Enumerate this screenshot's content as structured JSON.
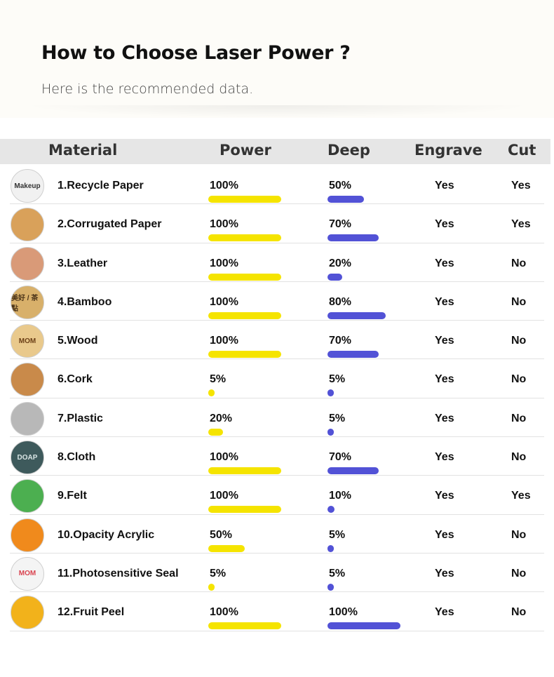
{
  "header": {
    "title": "How to Choose Laser Power ?",
    "subtitle": "Here is the recommended data."
  },
  "table": {
    "columns": {
      "material": "Material",
      "power": "Power",
      "deep": "Deep",
      "engrave": "Engrave",
      "cut": "Cut"
    },
    "rows": [
      {
        "material": "1.Recycle Paper",
        "power": "100%",
        "power_value": 100,
        "deep": "50%",
        "deep_value": 50,
        "engrave": "Yes",
        "cut": "Yes",
        "thumb_color": "#f1f1f1",
        "thumb_text": "Makeup",
        "thumb_text_color": "#333"
      },
      {
        "material": "2.Corrugated Paper",
        "power": "100%",
        "power_value": 100,
        "deep": "70%",
        "deep_value": 70,
        "engrave": "Yes",
        "cut": "Yes",
        "thumb_color": "#d9a15a",
        "thumb_text": "",
        "thumb_text_color": "#222"
      },
      {
        "material": "3.Leather",
        "power": "100%",
        "power_value": 100,
        "deep": "20%",
        "deep_value": 20,
        "engrave": "Yes",
        "cut": "No",
        "thumb_color": "#d99a78",
        "thumb_text": "",
        "thumb_text_color": "#5a2d1a"
      },
      {
        "material": "4.Bamboo",
        "power": "100%",
        "power_value": 100,
        "deep": "80%",
        "deep_value": 80,
        "engrave": "Yes",
        "cut": "No",
        "thumb_color": "#d8b06a",
        "thumb_text": "美好 / 茶點",
        "thumb_text_color": "#4a3318"
      },
      {
        "material": "5.Wood",
        "power": "100%",
        "power_value": 100,
        "deep": "70%",
        "deep_value": 70,
        "engrave": "Yes",
        "cut": "No",
        "thumb_color": "#e9c98c",
        "thumb_text": "MOM",
        "thumb_text_color": "#6b3f16"
      },
      {
        "material": "6.Cork",
        "power": "5%",
        "power_value": 5,
        "deep": "5%",
        "deep_value": 5,
        "engrave": "Yes",
        "cut": "No",
        "thumb_color": "#c98a4a",
        "thumb_text": "",
        "thumb_text_color": "#3a2210"
      },
      {
        "material": "7.Plastic",
        "power": "20%",
        "power_value": 20,
        "deep": "5%",
        "deep_value": 5,
        "engrave": "Yes",
        "cut": "No",
        "thumb_color": "#b8b8b8",
        "thumb_text": "",
        "thumb_text_color": "#b22"
      },
      {
        "material": "8.Cloth",
        "power": "100%",
        "power_value": 100,
        "deep": "70%",
        "deep_value": 70,
        "engrave": "Yes",
        "cut": "No",
        "thumb_color": "#3e5a5c",
        "thumb_text": "DOAP",
        "thumb_text_color": "#d8e4e4"
      },
      {
        "material": "9.Felt",
        "power": "100%",
        "power_value": 100,
        "deep": "10%",
        "deep_value": 10,
        "engrave": "Yes",
        "cut": "Yes",
        "thumb_color": "#4caf50",
        "thumb_text": "",
        "thumb_text_color": "#fff"
      },
      {
        "material": "10.Opacity Acrylic",
        "power": "50%",
        "power_value": 50,
        "deep": "5%",
        "deep_value": 5,
        "engrave": "Yes",
        "cut": "No",
        "thumb_color": "#f08a1c",
        "thumb_text": "",
        "thumb_text_color": "#3a2000"
      },
      {
        "material": "11.Photosensitive Seal",
        "power": "5%",
        "power_value": 5,
        "deep": "5%",
        "deep_value": 5,
        "engrave": "Yes",
        "cut": "No",
        "thumb_color": "#f4f4f4",
        "thumb_text": "MOM",
        "thumb_text_color": "#d9434f"
      },
      {
        "material": "12.Fruit Peel",
        "power": "100%",
        "power_value": 100,
        "deep": "100%",
        "deep_value": 100,
        "engrave": "Yes",
        "cut": "No",
        "thumb_color": "#f2b21b",
        "thumb_text": "",
        "thumb_text_color": "#c0392b"
      }
    ]
  },
  "colors": {
    "power_bar": "#f5e400",
    "deep_bar": "#5252d6",
    "header_band": "#e6e6e6"
  }
}
